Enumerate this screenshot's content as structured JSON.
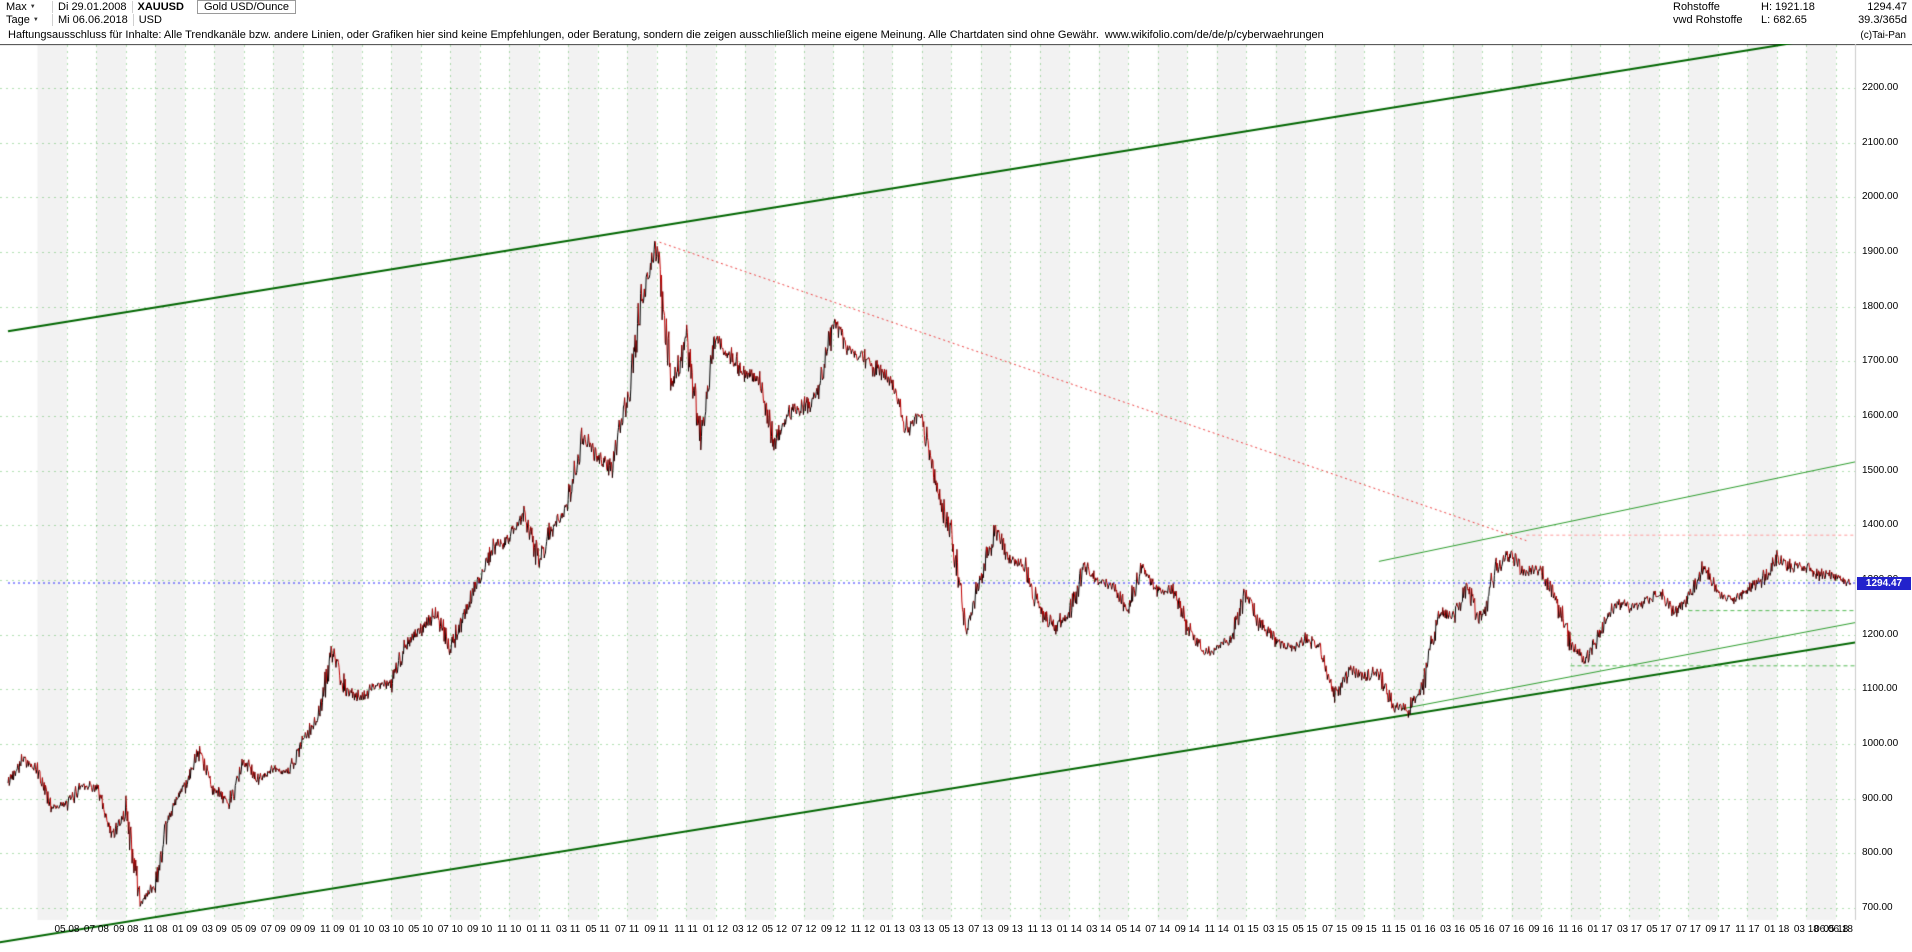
{
  "icons": {
    "dropdown_arrow": "▼"
  },
  "header": {
    "range_selector": "Max",
    "date_from": "Di 29.01.2008",
    "symbol": "XAUUSD",
    "instrument_name": "Gold USD/Ounce",
    "period_selector": "Tage",
    "date_to": "Mi 06.06.2018",
    "currency": "USD",
    "category": "Rohstoffe",
    "source": "vwd Rohstoffe",
    "high_label": "H: 1921.18",
    "low_label": "L: 682.65",
    "last_price": "1294.47",
    "range_info": "39.3/365d",
    "copyright": "(c)Tai-Pan"
  },
  "disclaimer": {
    "text": "Haftungsausschluss für Inhalte: Alle Trendkanäle bzw. andere Linien, oder Grafiken hier sind keine Empfehlungen, oder Beratung, sondern die zeigen ausschließlich meine eigene Meinung. Alle Chartdaten sind ohne Gewähr.",
    "link": "www.wikifolio.com/de/de/p/cyberwaehrungen"
  },
  "chart_data": {
    "type": "line",
    "title": "Gold USD/Ounce (XAUUSD), Tage, Jan 2008 - Jun 2018",
    "months_start": "2008-01",
    "months_end": "2018-06",
    "monthly_values": [
      923,
      975,
      955,
      880,
      890,
      930,
      915,
      835,
      880,
      705,
      745,
      875,
      920,
      985,
      920,
      885,
      975,
      935,
      950,
      950,
      1005,
      1040,
      1170,
      1095,
      1080,
      1115,
      1110,
      1180,
      1212,
      1240,
      1170,
      1245,
      1305,
      1355,
      1385,
      1418,
      1330,
      1410,
      1435,
      1560,
      1535,
      1500,
      1630,
      1825,
      1900,
      1655,
      1745,
      1565,
      1740,
      1720,
      1670,
      1660,
      1560,
      1600,
      1615,
      1650,
      1770,
      1720,
      1715,
      1675,
      1660,
      1580,
      1598,
      1470,
      1390,
      1200,
      1310,
      1395,
      1330,
      1325,
      1250,
      1205,
      1245,
      1325,
      1290,
      1290,
      1250,
      1315,
      1285,
      1288,
      1210,
      1175,
      1175,
      1185,
      1285,
      1215,
      1185,
      1180,
      1190,
      1170,
      1095,
      1135,
      1115,
      1140,
      1065,
      1060,
      1115,
      1235,
      1230,
      1290,
      1215,
      1320,
      1355,
      1310,
      1315,
      1275,
      1175,
      1150,
      1210,
      1250,
      1250,
      1268,
      1270,
      1240,
      1270,
      1320,
      1280,
      1270,
      1275,
      1300,
      1345,
      1318,
      1325,
      1315,
      1300,
      1294.47
    ],
    "last_value": 1294.47,
    "high": 1921.18,
    "low": 682.65,
    "ylim": [
      700,
      2200
    ],
    "grid": true,
    "y_ticks": [
      "2200.00",
      "2100.00",
      "2000.00",
      "1900.00",
      "1800.00",
      "1700.00",
      "1600.00",
      "1500.00",
      "1400.00",
      "1300.00",
      "1200.00",
      "1100.00",
      "1000.00",
      "900.00",
      "800.00",
      "700.00"
    ],
    "x_ticks": [
      "05 08",
      "07 08",
      "09 08",
      "11 08",
      "01 09",
      "03 09",
      "05 09",
      "07 09",
      "09 09",
      "11 09",
      "01 10",
      "03 10",
      "05 10",
      "07 10",
      "09 10",
      "11 10",
      "01 11",
      "03 11",
      "05 11",
      "07 11",
      "09 11",
      "11 11",
      "01 12",
      "03 12",
      "05 12",
      "07 12",
      "09 12",
      "11 12",
      "01 13",
      "03 13",
      "05 13",
      "07 13",
      "09 13",
      "11 13",
      "01 14",
      "03 14",
      "05 14",
      "07 14",
      "09 14",
      "11 14",
      "01 15",
      "03 15",
      "05 15",
      "07 15",
      "09 15",
      "11 15",
      "01 16",
      "03 16",
      "05 16",
      "07 16",
      "09 16",
      "11 16",
      "01 17",
      "03 17",
      "05 17",
      "07 17",
      "09 17",
      "11 17",
      "01 18",
      "03 18",
      "05 18"
    ],
    "x_tick_start_month_index": 4,
    "x_tick_step_months": 2,
    "last_date_label": "06.06.18",
    "price_marker": {
      "value": "1294.47",
      "color": "#2222cc"
    },
    "series_colors": {
      "up": "#000000",
      "down": "#c00000"
    },
    "lines": [
      {
        "name": "upper-trend-channel",
        "color": "#006600",
        "width": 2,
        "dash": [],
        "points": [
          [
            0,
            1755
          ],
          [
            125.6,
            2302
          ]
        ]
      },
      {
        "name": "lower-trend-channel",
        "color": "#006600",
        "width": 2,
        "dash": [],
        "points": [
          [
            -2,
            631
          ],
          [
            125.6,
            1187
          ]
        ]
      },
      {
        "name": "rising-resistance-2016",
        "color": "#2e9e2e",
        "width": 1,
        "dash": [],
        "points": [
          [
            93,
            1334
          ],
          [
            125.3,
            1516
          ]
        ]
      },
      {
        "name": "rising-support-2016",
        "color": "#2e9e2e",
        "width": 1,
        "dash": [],
        "points": [
          [
            94.5,
            1064
          ],
          [
            125.3,
            1222
          ]
        ]
      },
      {
        "name": "downtrend-from-2011-high",
        "color": "#ee4444",
        "width": 1,
        "dash": [
          2,
          3
        ],
        "points": [
          [
            44.2,
            1918
          ],
          [
            103,
            1372
          ]
        ]
      },
      {
        "name": "horizontal-resistance-1382",
        "color": "#ff9c9c",
        "width": 1,
        "dash": [
          3,
          3
        ],
        "points": [
          [
            103,
            1382
          ],
          [
            125.3,
            1382
          ]
        ]
      },
      {
        "name": "dashed-level-1244",
        "color": "#55bb55",
        "width": 1,
        "dash": [
          4,
          3
        ],
        "points": [
          [
            114,
            1244
          ],
          [
            125.3,
            1244
          ]
        ]
      },
      {
        "name": "dashed-level-1143",
        "color": "#55bb55",
        "width": 1,
        "dash": [
          4,
          3
        ],
        "points": [
          [
            106,
            1143
          ],
          [
            125.3,
            1143
          ]
        ]
      },
      {
        "name": "last-price-line",
        "color": "#2b2bff",
        "width": 1,
        "dash": [
          2,
          3
        ],
        "points": [
          [
            0,
            1294.47
          ],
          [
            125.3,
            1294.47
          ]
        ]
      }
    ]
  }
}
